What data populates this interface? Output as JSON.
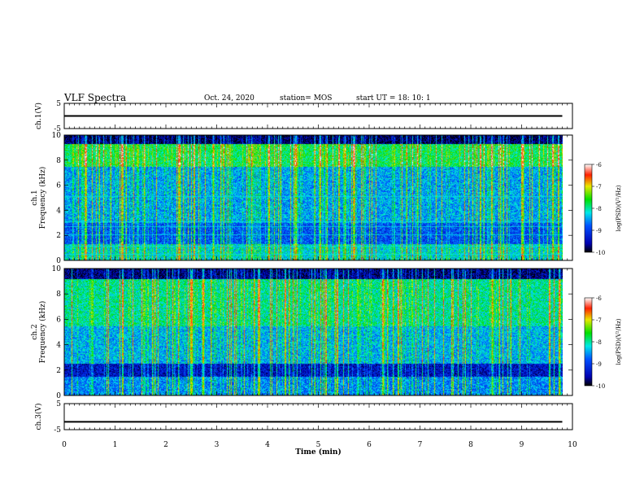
{
  "header": {
    "title": "VLF Spectra",
    "date": "Oct. 24, 2020",
    "station": "station= MOS",
    "start_ut": "start UT =   18: 10: 1"
  },
  "chart_data": [
    {
      "type": "line",
      "name": "ch1-voltage",
      "ylabel": "ch.1(V)",
      "ylim": [
        -5,
        5
      ],
      "yticks": [
        "5",
        "-5"
      ],
      "xlim": [
        0,
        10
      ],
      "series": [
        {
          "x": [
            0,
            9.8
          ],
          "values": [
            0,
            0
          ]
        }
      ]
    },
    {
      "type": "heatmap",
      "name": "ch1-spectrogram",
      "ylabel": "ch.1\nFrequency (kHz)",
      "ylim": [
        0,
        10
      ],
      "yticks": [
        "0",
        "2",
        "4",
        "6",
        "8",
        "10"
      ],
      "xlim": [
        0,
        10
      ],
      "data_end_min": 9.8,
      "colorbar": {
        "label": "log(PSD)(V²/Hz)",
        "range": [
          -10,
          -6
        ],
        "ticks": [
          "-6",
          "-7",
          "-8",
          "-9",
          "-10"
        ]
      }
    },
    {
      "type": "heatmap",
      "name": "ch2-spectrogram",
      "ylabel": "ch.2\nFrequency (kHz)",
      "ylim": [
        0,
        10
      ],
      "yticks": [
        "0",
        "2",
        "4",
        "6",
        "8",
        "10"
      ],
      "xlim": [
        0,
        10
      ],
      "data_end_min": 9.8,
      "colorbar": {
        "label": "log(PSD)(V²/Hz)",
        "range": [
          -10,
          -6
        ],
        "ticks": [
          "-6",
          "-7",
          "-8",
          "-9",
          "-10"
        ]
      }
    },
    {
      "type": "line",
      "name": "ch3-voltage",
      "ylabel": "ch.3(V)",
      "ylim": [
        -5,
        5
      ],
      "yticks": [
        "5",
        "-5"
      ],
      "xlim": [
        0,
        10
      ],
      "xlabel": "Time (min)",
      "xticks": [
        "0",
        "1",
        "2",
        "3",
        "4",
        "5",
        "6",
        "7",
        "8",
        "9",
        "10"
      ],
      "series": [
        {
          "x": [
            0,
            9.8
          ],
          "values": [
            -2,
            -2
          ]
        }
      ]
    }
  ]
}
